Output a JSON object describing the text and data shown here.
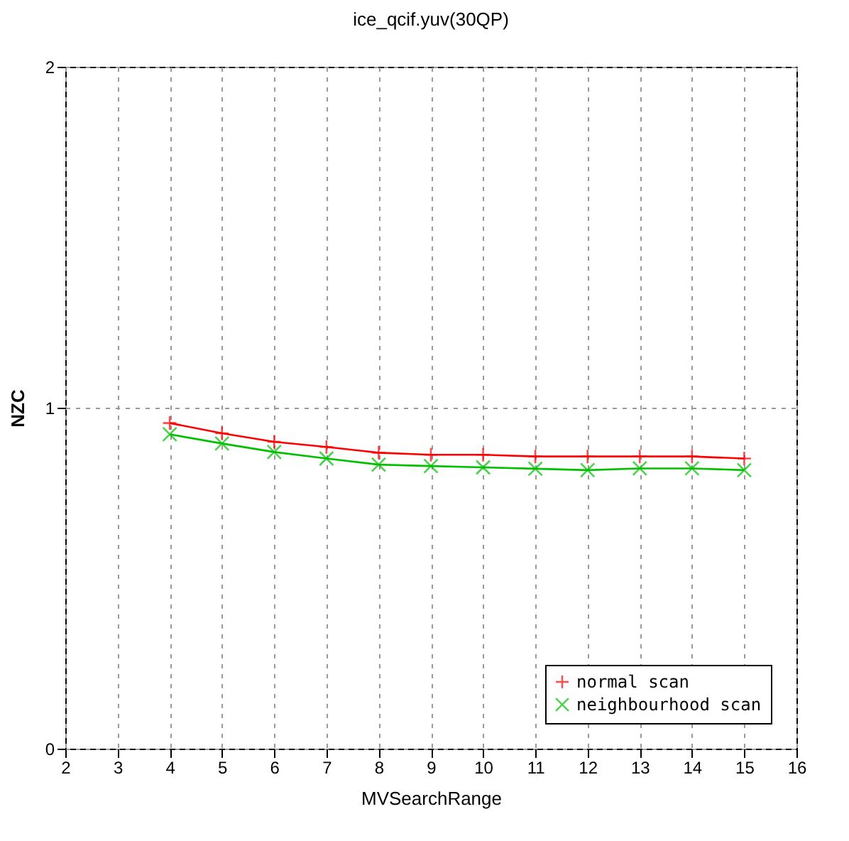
{
  "chart_data": {
    "type": "line",
    "title": "ice_qcif.yuv(30QP)",
    "xlabel": "MVSearchRange",
    "ylabel": "NZC",
    "x": [
      4,
      5,
      6,
      7,
      8,
      9,
      10,
      11,
      12,
      13,
      14,
      15
    ],
    "series": [
      {
        "name": "normal scan",
        "color": "#ff0000",
        "marker": "cross",
        "values": [
          0.955,
          0.925,
          0.9,
          0.885,
          0.868,
          0.862,
          0.862,
          0.857,
          0.857,
          0.857,
          0.857,
          0.851
        ]
      },
      {
        "name": "neighbourhood scan",
        "color": "#00c000",
        "marker": "cross",
        "values": [
          0.922,
          0.895,
          0.87,
          0.851,
          0.833,
          0.829,
          0.825,
          0.821,
          0.817,
          0.822,
          0.822,
          0.817
        ]
      }
    ],
    "xlim": [
      2,
      16
    ],
    "xticks": [
      2,
      3,
      4,
      5,
      6,
      7,
      8,
      9,
      10,
      11,
      12,
      13,
      14,
      15,
      16
    ],
    "ylim": [
      0,
      2
    ],
    "yticks": [
      0,
      1,
      2
    ],
    "grid": true,
    "legend": "bottom right",
    "line_style": "solid"
  }
}
